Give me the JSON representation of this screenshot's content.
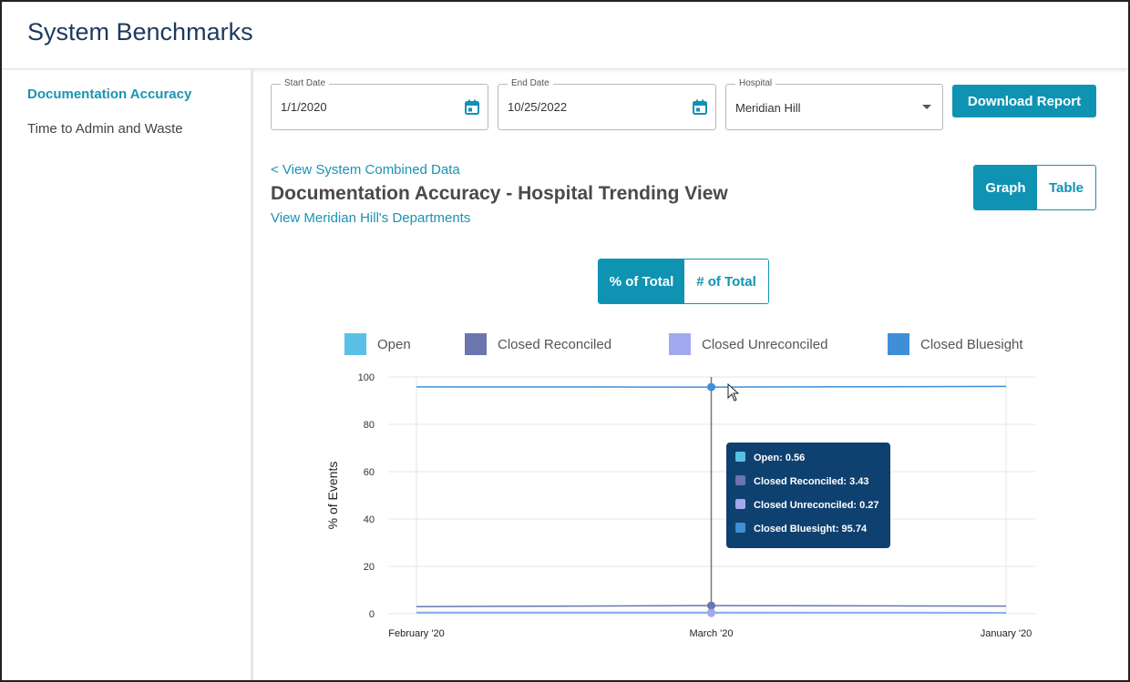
{
  "header": {
    "title": "System Benchmarks"
  },
  "sidebar": {
    "items": [
      {
        "label": "Documentation Accuracy"
      },
      {
        "label": "Time to Admin and Waste"
      }
    ]
  },
  "filters": {
    "start_date": {
      "label": "Start Date",
      "value": "1/1/2020"
    },
    "end_date": {
      "label": "End Date",
      "value": "10/25/2022"
    },
    "hospital": {
      "label": "Hospital",
      "value": "Meridian Hill"
    },
    "download_label": "Download Report"
  },
  "view": {
    "back_link": "< View System Combined Data",
    "title": "Documentation Accuracy - Hospital Trending View",
    "departments_link": "View Meridian Hill's Departments",
    "view_toggle": {
      "graph": "Graph",
      "table": "Table"
    },
    "metric_toggle": {
      "percent": "% of Total",
      "count": "# of Total"
    }
  },
  "colors": {
    "accent": "#0f93b3",
    "open": "#5bc0e8",
    "closed_reconciled": "#6a76ad",
    "closed_unreconciled": "#a3a9ee",
    "closed_bluesight": "#3f8fd8",
    "tooltip_bg": "#0f4170"
  },
  "chart_data": {
    "type": "line",
    "x": [
      "February '20",
      "March '20",
      "January '20"
    ],
    "series": [
      {
        "name": "Open",
        "values": [
          0.6,
          0.56,
          0.5
        ]
      },
      {
        "name": "Closed Reconciled",
        "values": [
          3.0,
          3.43,
          3.2
        ]
      },
      {
        "name": "Closed Unreconciled",
        "values": [
          0.3,
          0.27,
          0.3
        ]
      },
      {
        "name": "Closed Bluesight",
        "values": [
          95.8,
          95.74,
          96.0
        ]
      }
    ],
    "ylabel": "% of Events",
    "ylim": [
      0,
      100
    ],
    "yticks": [
      0,
      20,
      40,
      60,
      80,
      100
    ],
    "grid": true,
    "legend": "top",
    "hover_index": 1,
    "tooltip": [
      {
        "text": "Open: 0.56"
      },
      {
        "text": "Closed Reconciled: 3.43"
      },
      {
        "text": "Closed Unreconciled: 0.27"
      },
      {
        "text": "Closed Bluesight: 95.74"
      }
    ]
  }
}
